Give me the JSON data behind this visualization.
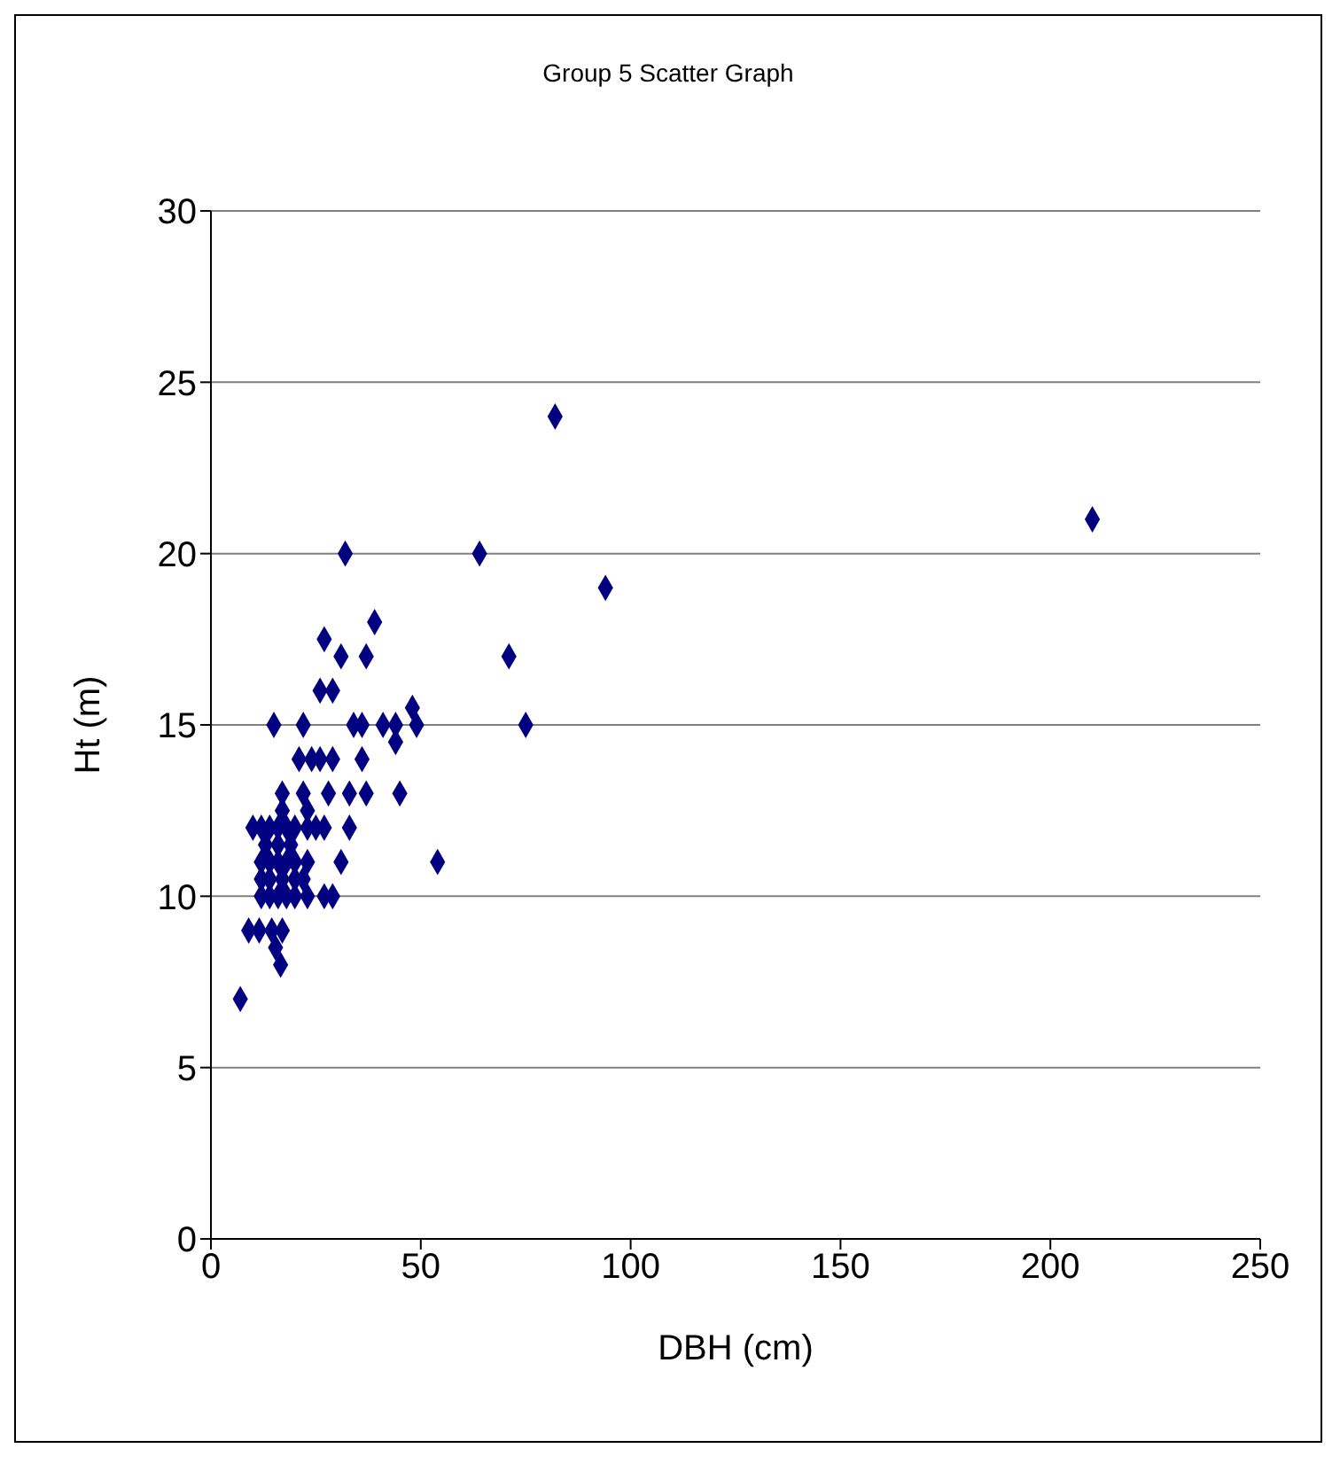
{
  "chart_data": {
    "type": "scatter",
    "title": "Group 5 Scatter Graph",
    "xlabel": "DBH (cm)",
    "ylabel": "Ht (m)",
    "xlim": [
      0,
      250
    ],
    "xticks": [
      0,
      50,
      100,
      150,
      200,
      250
    ],
    "ylim": [
      0,
      30
    ],
    "yticks": [
      0,
      5,
      10,
      15,
      20,
      25,
      30
    ],
    "grid": "y",
    "marker": "diamond",
    "legend": false,
    "series": [
      {
        "color": "#000080",
        "x": [
          7,
          9,
          11.5,
          14.5,
          17,
          15.4,
          16.6,
          12,
          14,
          16,
          18,
          20,
          23,
          27,
          29,
          12,
          14,
          17,
          20,
          22,
          12,
          14,
          16,
          18,
          20,
          23,
          31,
          54,
          13,
          16,
          19,
          10,
          12,
          14,
          16,
          18,
          20,
          23,
          25,
          27,
          33,
          17,
          23,
          17,
          22,
          28,
          33,
          37,
          45,
          21,
          24,
          26,
          29,
          36,
          44,
          15,
          22,
          34,
          36,
          41,
          44,
          49,
          48,
          26,
          29,
          31,
          37,
          27,
          39,
          32,
          64,
          82,
          94,
          71,
          75,
          210
        ],
        "values": [
          7,
          9,
          9,
          9,
          9,
          8.5,
          8,
          10,
          10,
          10,
          10,
          10,
          10,
          10,
          10,
          10.5,
          10.5,
          10.5,
          10.5,
          10.5,
          11,
          11,
          11,
          11,
          11,
          11,
          11,
          11,
          11.5,
          11.5,
          11.5,
          12,
          12,
          12,
          12,
          12,
          12,
          12,
          12,
          12,
          12,
          12.5,
          12.5,
          13,
          13,
          13,
          13,
          13,
          13,
          14,
          14,
          14,
          14,
          14,
          14.5,
          15,
          15,
          15,
          15,
          15,
          15,
          15,
          15.5,
          16,
          16,
          17,
          17,
          17.5,
          18,
          20,
          20,
          24,
          19,
          17,
          15,
          21
        ]
      }
    ]
  }
}
